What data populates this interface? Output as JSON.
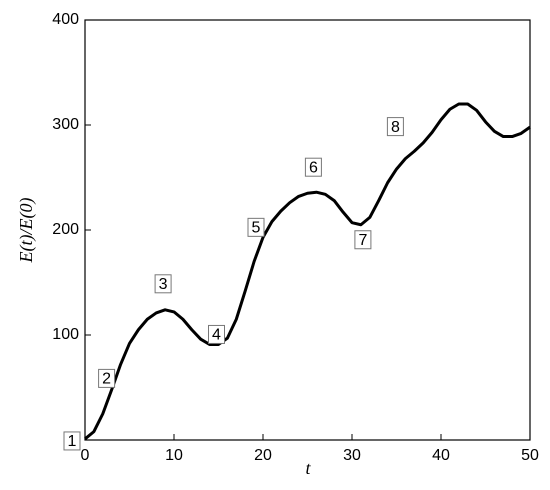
{
  "chart_data": {
    "type": "line",
    "x_label": "t",
    "y_label": "E(t)/E(0)",
    "x": [
      0,
      1,
      2,
      3,
      4,
      5,
      6,
      7,
      8,
      9,
      10,
      11,
      12,
      13,
      14,
      15,
      16,
      17,
      18,
      19,
      20,
      21,
      22,
      23,
      24,
      25,
      26,
      27,
      28,
      29,
      30,
      31,
      32,
      33,
      34,
      35,
      36,
      37,
      38,
      39,
      40,
      41,
      42,
      43,
      44,
      45,
      46,
      47,
      48,
      49,
      50
    ],
    "series": [
      {
        "color": "#000000",
        "values": [
          1,
          8,
          25,
          48,
          72,
          92,
          105,
          115,
          121,
          124,
          122,
          115,
          105,
          96,
          91,
          91,
          97,
          115,
          142,
          170,
          193,
          208,
          218,
          226,
          232,
          235,
          236,
          234,
          228,
          217,
          207,
          205,
          212,
          228,
          245,
          258,
          268,
          275,
          283,
          293,
          305,
          315,
          320,
          320,
          314,
          303,
          294,
          289,
          289,
          292,
          298
        ]
      }
    ],
    "xlim": [
      0,
      50
    ],
    "xticks": [
      0,
      10,
      20,
      30,
      40,
      50
    ],
    "ylim": [
      0,
      400
    ],
    "yticks": [
      100,
      200,
      300,
      400
    ],
    "annotations": [
      {
        "text": "1",
        "x": 0,
        "y": 1
      },
      {
        "text": "2",
        "x": 4,
        "y": 72
      },
      {
        "text": "3",
        "x": 9,
        "y": 124
      },
      {
        "text": "4",
        "x": 15,
        "y": 91
      },
      {
        "text": "5",
        "x": 20,
        "y": 193
      },
      {
        "text": "6",
        "x": 26,
        "y": 236
      },
      {
        "text": "7",
        "x": 31,
        "y": 205
      },
      {
        "text": "8",
        "x": 36,
        "y": 268
      }
    ]
  }
}
